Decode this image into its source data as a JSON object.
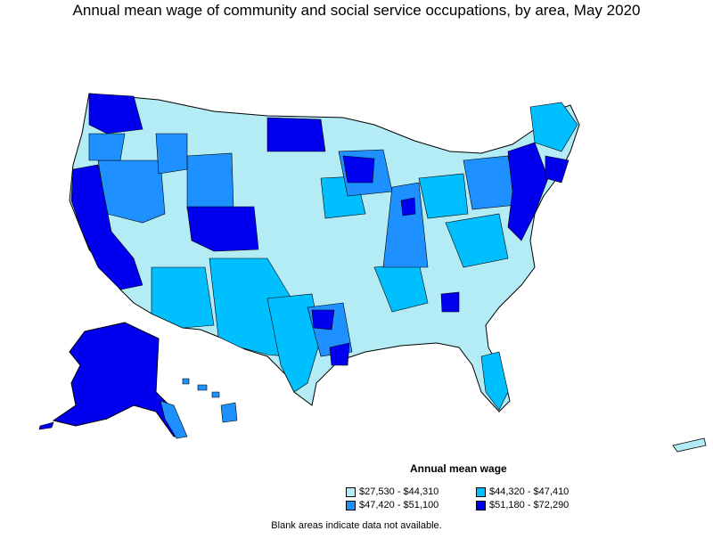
{
  "title": "Annual mean wage of community and social service occupations, by area, May 2020",
  "legend": {
    "title": "Annual mean wage",
    "bins": [
      {
        "label": "$27,530 - $44,310",
        "color": "#b3ecf5"
      },
      {
        "label": "$44,320 - $47,410",
        "color": "#00bfff"
      },
      {
        "label": "$47,420 - $51,100",
        "color": "#1e90ff"
      },
      {
        "label": "$51,180 - $72,290",
        "color": "#0000ee"
      }
    ]
  },
  "footnote": "Blank areas indicate data not available."
}
